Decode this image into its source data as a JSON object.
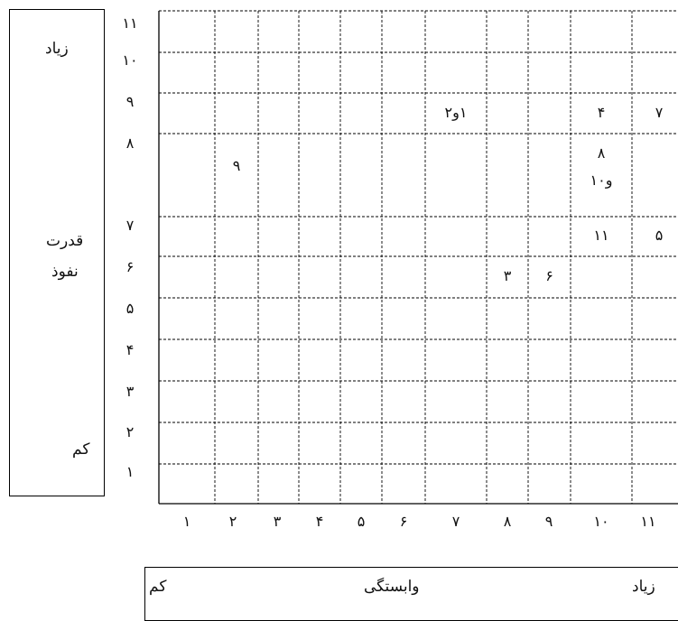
{
  "chart_data": {
    "type": "scatter",
    "title": "",
    "xlabel": "وابستگی",
    "ylabel": "قدرت نفوذ",
    "x_ticks": [
      "۱",
      "۲",
      "۳",
      "۴",
      "۵",
      "۶",
      "۷",
      "۸",
      "۹",
      "۱۰",
      "۱۱"
    ],
    "y_ticks": [
      "۱۱",
      "۱۰",
      "۹",
      "۸",
      "۷",
      "۶",
      "۵",
      "۴",
      "۳",
      "۲",
      "۱"
    ],
    "xlim": [
      1,
      11
    ],
    "ylim": [
      1,
      11
    ],
    "grid": true,
    "x_low_label": "کم",
    "x_high_label": "زیاد",
    "y_high_label": "زیاد",
    "y_low_label": "کم",
    "y_mid_label_1": "قدرت",
    "y_mid_label_2": "نفوذ",
    "points": [
      {
        "label": "۱و۲",
        "x": 7,
        "y": 9
      },
      {
        "label": "۴",
        "x": 10,
        "y": 9
      },
      {
        "label": "۷",
        "x": 11,
        "y": 9
      },
      {
        "label": "۹",
        "x": 2,
        "y": 8
      },
      {
        "label": "۸",
        "x": 10,
        "y": 8
      },
      {
        "label": "و۱۰",
        "x": 10,
        "y": 8
      },
      {
        "label": "۱۱",
        "x": 10,
        "y": 7
      },
      {
        "label": "۵",
        "x": 11,
        "y": 7
      },
      {
        "label": "۳",
        "x": 8,
        "y": 6
      },
      {
        "label": "۶",
        "x": 9,
        "y": 6
      }
    ]
  }
}
